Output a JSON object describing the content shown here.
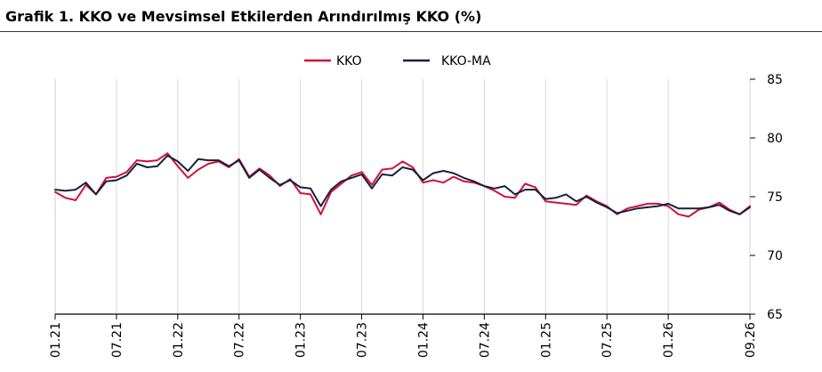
{
  "title": "Grafik 1. KKO ve Mevsimsel Etkilerden Arındırılmış KKO (%)",
  "chart_data": {
    "type": "line",
    "title": "Grafik 1. KKO ve Mevsimsel Etkilerden Arındırılmış KKO (%)",
    "x_ticks": [
      "01.21",
      "07.21",
      "01.22",
      "07.22",
      "01.23",
      "07.23",
      "01.24",
      "07.24",
      "01.25",
      "07.25",
      "01.26",
      "09.26"
    ],
    "ylim": [
      65,
      85
    ],
    "y_ticks": [
      65,
      70,
      75,
      80,
      85
    ],
    "grid": "vertical",
    "legend": "top-center",
    "series": [
      {
        "name": "KKO",
        "color": "#d0103a",
        "values": [
          75.4,
          74.9,
          74.7,
          76.0,
          75.2,
          76.6,
          76.7,
          77.1,
          78.1,
          78.0,
          78.1,
          78.7,
          77.6,
          76.6,
          77.3,
          77.8,
          78.0,
          77.5,
          78.2,
          76.7,
          77.4,
          76.8,
          75.9,
          76.5,
          75.3,
          75.2,
          73.5,
          75.4,
          76.1,
          76.8,
          77.1,
          76.0,
          77.3,
          77.4,
          78.0,
          77.5,
          76.2,
          76.4,
          76.2,
          76.7,
          76.3,
          76.2,
          75.9,
          75.5,
          75.0,
          74.9,
          76.1,
          75.8,
          74.6,
          74.5,
          74.4,
          74.3,
          75.1,
          74.6,
          74.2,
          73.5,
          74.0,
          74.2,
          74.4,
          74.4,
          74.2,
          73.5,
          73.3,
          73.9,
          74.1,
          74.5,
          73.9,
          73.5,
          74.2
        ]
      },
      {
        "name": "KKO-MA",
        "color": "#14213d",
        "values": [
          75.6,
          75.5,
          75.6,
          76.2,
          75.2,
          76.3,
          76.4,
          76.8,
          77.8,
          77.5,
          77.6,
          78.5,
          78.0,
          77.2,
          78.2,
          78.1,
          78.1,
          77.6,
          78.1,
          76.6,
          77.3,
          76.6,
          76.0,
          76.4,
          75.8,
          75.7,
          74.2,
          75.6,
          76.3,
          76.6,
          76.9,
          75.7,
          76.9,
          76.8,
          77.5,
          77.3,
          76.4,
          77.0,
          77.2,
          77.0,
          76.6,
          76.3,
          75.9,
          75.7,
          75.9,
          75.2,
          75.6,
          75.6,
          74.8,
          74.9,
          75.2,
          74.6,
          75.0,
          74.5,
          74.1,
          73.6,
          73.8,
          74.0,
          74.1,
          74.2,
          74.4,
          74.0,
          74.0,
          74.0,
          74.1,
          74.3,
          73.8,
          73.5,
          74.1
        ]
      }
    ]
  }
}
